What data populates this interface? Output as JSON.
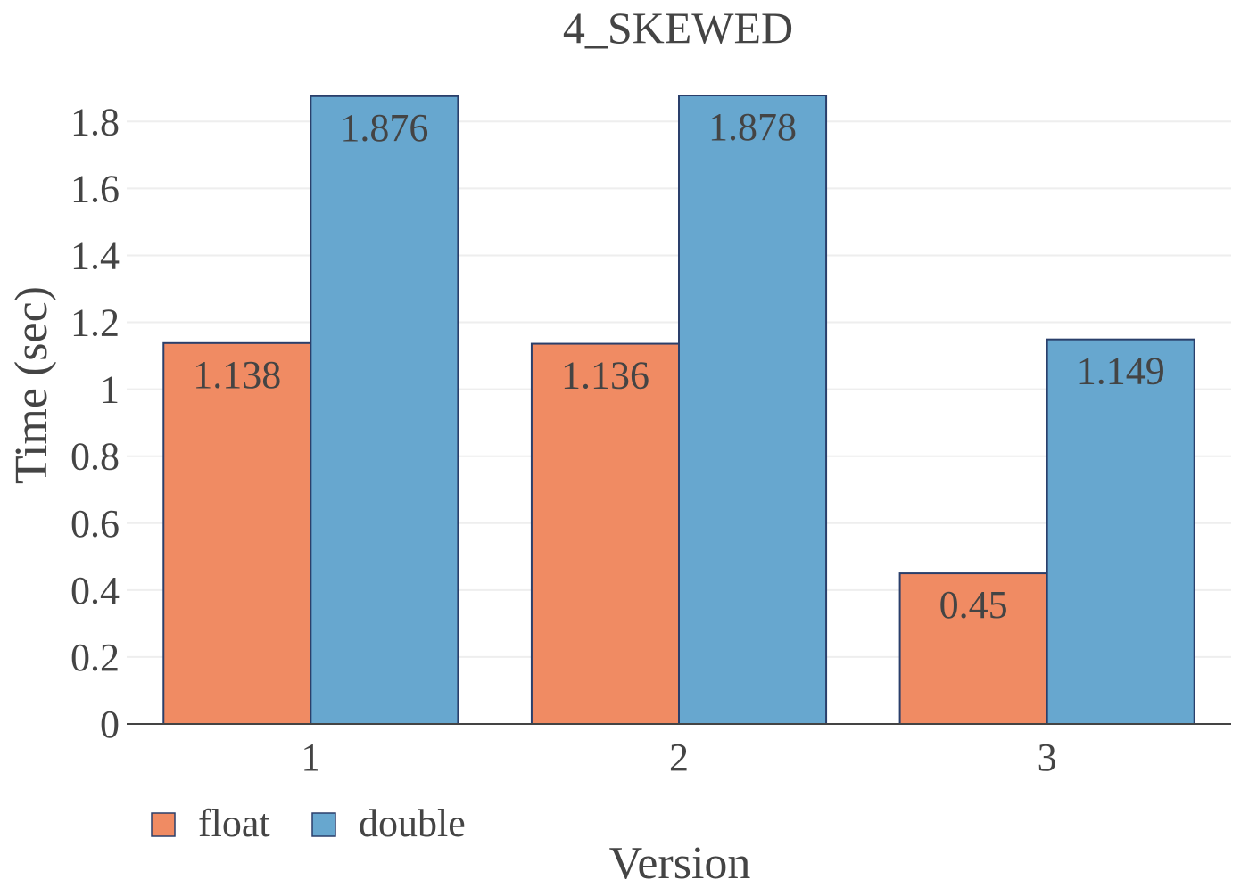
{
  "chart_data": {
    "type": "bar",
    "title": "4_SKEWED",
    "xlabel": "Version",
    "ylabel": "Time (sec)",
    "categories": [
      "1",
      "2",
      "3"
    ],
    "series": [
      {
        "name": "float",
        "color": "#f08b63",
        "values": [
          1.138,
          1.136,
          0.45
        ]
      },
      {
        "name": "double",
        "color": "#67a7cf",
        "values": [
          1.876,
          1.878,
          1.149
        ]
      }
    ],
    "data_labels": [
      [
        "1.138",
        "1.136",
        "0.45"
      ],
      [
        "1.876",
        "1.878",
        "1.149"
      ]
    ],
    "ylim": [
      0,
      1.95
    ],
    "yticks": [
      0,
      0.2,
      0.4,
      0.6,
      0.8,
      1,
      1.2,
      1.4,
      1.6,
      1.8
    ],
    "ytick_labels": [
      "0",
      "0.2",
      "0.4",
      "0.6",
      "0.8",
      "1",
      "1.2",
      "1.4",
      "1.6",
      "1.8"
    ],
    "grid": true,
    "legend_position": "bottom-left",
    "bar_edge_color": "#2a3f6b",
    "grid_color": "#eeeeee",
    "axis_color": "#444444"
  }
}
